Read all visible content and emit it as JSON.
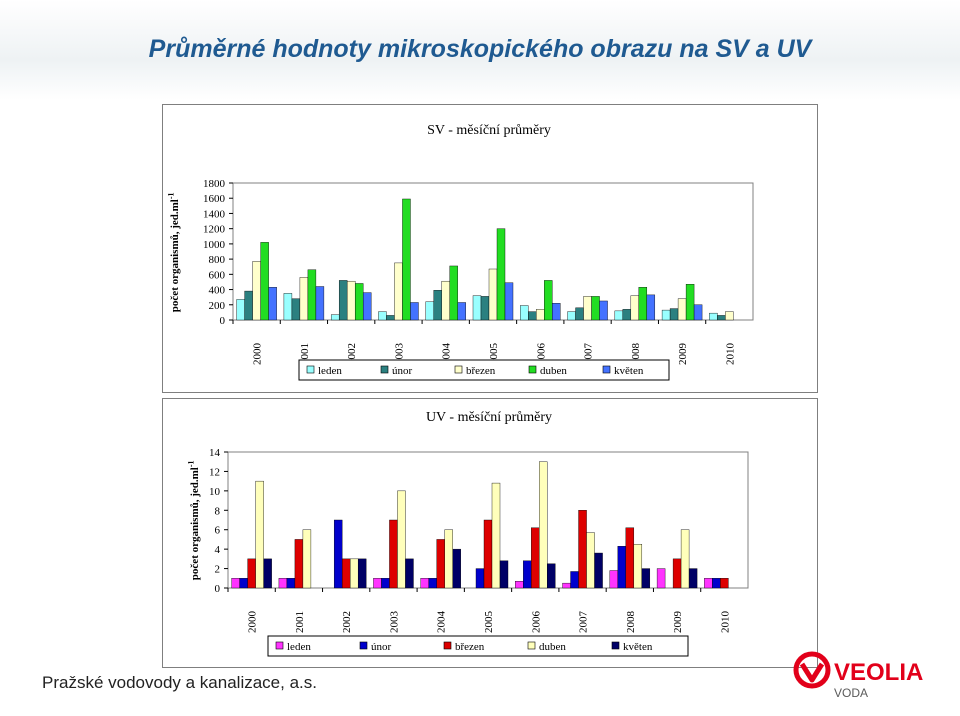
{
  "header": {
    "title": "Průměrné hodnoty mikroskopického obrazu na SV a UV"
  },
  "footer": {
    "text": "Pražské vodovody a kanalizace, a.s."
  },
  "logo": {
    "name": "VEOLIA",
    "sub": "VODA",
    "colors": {
      "red": "#e2001a",
      "dark": "#5a5a5a"
    }
  },
  "chart_data": [
    {
      "type": "bar",
      "title": "SV - měsíční průměry",
      "ylabel": "počet organismů, jed.ml",
      "ylabel_sup": "-1",
      "ylim": [
        0,
        1800
      ],
      "yticks": [
        "0",
        "200",
        "400",
        "600",
        "800",
        "1000",
        "1200",
        "1400",
        "1600",
        "1800"
      ],
      "categories": [
        "2000",
        "2001",
        "2002",
        "2003",
        "2004",
        "2005",
        "2006",
        "2007",
        "2008",
        "2009",
        "2010"
      ],
      "legend_position": "bottom",
      "series": [
        {
          "name": "leden",
          "color": "#99ffff",
          "values": [
            270,
            350,
            70,
            110,
            240,
            320,
            190,
            110,
            120,
            130,
            90
          ]
        },
        {
          "name": "únor",
          "color": "#2b8080",
          "values": [
            380,
            280,
            520,
            60,
            390,
            310,
            110,
            160,
            140,
            150,
            60
          ]
        },
        {
          "name": "březen",
          "color": "#ffffcc",
          "values": [
            770,
            560,
            510,
            750,
            510,
            670,
            140,
            310,
            320,
            280,
            110
          ]
        },
        {
          "name": "duben",
          "color": "#22dd22",
          "values": [
            1020,
            660,
            480,
            1590,
            710,
            1200,
            520,
            310,
            430,
            470,
            null
          ]
        },
        {
          "name": "květen",
          "color": "#4472ff",
          "values": [
            430,
            440,
            360,
            230,
            230,
            490,
            220,
            250,
            330,
            200,
            null
          ]
        }
      ]
    },
    {
      "type": "bar",
      "title": "UV - měsíční průměry",
      "ylabel": "počet organismů, jed.ml",
      "ylabel_sup": "-1",
      "ylim": [
        0,
        14
      ],
      "yticks": [
        "0",
        "2",
        "4",
        "6",
        "8",
        "10",
        "12",
        "14"
      ],
      "categories": [
        "2000",
        "2001",
        "2002",
        "2003",
        "2004",
        "2005",
        "2006",
        "2007",
        "2008",
        "2009",
        "2010"
      ],
      "legend_position": "bottom",
      "series": [
        {
          "name": "leden",
          "color": "#ff33ff",
          "values": [
            1,
            1,
            null,
            1,
            1,
            null,
            0.7,
            0.5,
            1.8,
            2,
            1
          ]
        },
        {
          "name": "únor",
          "color": "#0000cc",
          "values": [
            1,
            1,
            7,
            1,
            1,
            2,
            2.8,
            1.7,
            4.3,
            null,
            1
          ]
        },
        {
          "name": "březen",
          "color": "#dd0000",
          "values": [
            3,
            5,
            3,
            7,
            5,
            7,
            6.2,
            8,
            6.2,
            3,
            1
          ]
        },
        {
          "name": "duben",
          "color": "#ffffbb",
          "values": [
            11,
            6,
            3,
            10,
            6,
            10.8,
            13,
            5.7,
            4.5,
            6,
            null
          ]
        },
        {
          "name": "květen",
          "color": "#000066",
          "values": [
            3,
            null,
            3,
            3,
            4,
            2.8,
            2.5,
            3.6,
            2,
            2,
            null
          ]
        }
      ]
    }
  ]
}
